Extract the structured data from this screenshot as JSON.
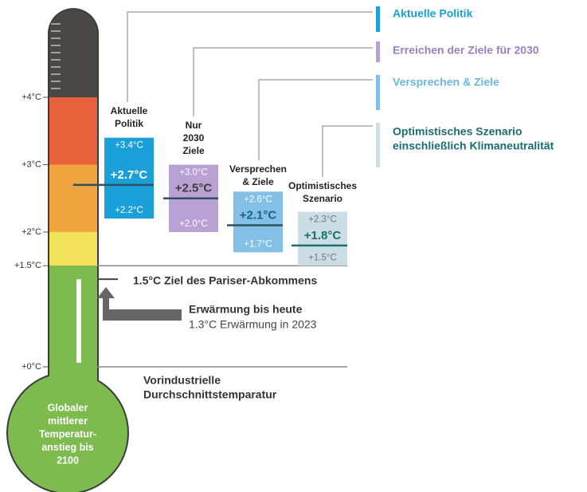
{
  "chart_data": {
    "type": "range",
    "ylim": [
      0,
      5.3
    ],
    "yticks": [
      {
        "value": 0,
        "label": "+0°C"
      },
      {
        "value": 1.5,
        "label": "+1.5°C"
      },
      {
        "value": 2,
        "label": "+2°C"
      },
      {
        "value": 3,
        "label": "+3°C"
      },
      {
        "value": 4,
        "label": "+4°C"
      }
    ],
    "zones": [
      {
        "from": 0,
        "to": 1.5,
        "color": "#7dbb4f"
      },
      {
        "from": 1.5,
        "to": 2,
        "color": "#f3e25c"
      },
      {
        "from": 2,
        "to": 3,
        "color": "#f0a43f"
      },
      {
        "from": 3,
        "to": 4,
        "color": "#e8613d"
      },
      {
        "from": 4,
        "to": 5.3,
        "color": "#4a4846"
      }
    ],
    "bulb_label": [
      "Globaler",
      "mittlerer",
      "Temperatur-",
      "anstieg bis",
      "2100"
    ],
    "series": [
      {
        "name": [
          "Aktuelle",
          "Politik"
        ],
        "legend": [
          "Aktuelle Politik"
        ],
        "color": "#1a9fd8",
        "text_color": "#1a9fd8",
        "mid_color": "#ffffff",
        "values": [
          3.4,
          2.7,
          2.2
        ],
        "value_labels": [
          "+3.4°C",
          "+2.7°C",
          "+2.2°C"
        ]
      },
      {
        "name": [
          "Nur",
          "2030",
          "Ziele"
        ],
        "legend": [
          "Erreichen der Ziele für 2030"
        ],
        "color": "#b9a2d3",
        "text_color": "#9b7fc0",
        "mid_color": "#3d3d3d",
        "values": [
          3.0,
          2.5,
          2.0
        ],
        "value_labels": [
          "+3.0°C",
          "+2.5°C",
          "+2.0°C"
        ]
      },
      {
        "name": [
          "Versprechen",
          "& Ziele"
        ],
        "legend": [
          "Versprechen & Ziele"
        ],
        "color": "#82c1e5",
        "text_color": "#6cb6e0",
        "mid_color": "#1b5f8c",
        "values": [
          2.6,
          2.1,
          1.7
        ],
        "value_labels": [
          "+2.6°C",
          "+2.1°C",
          "+1.7°C"
        ]
      },
      {
        "name": [
          "Optimistisches",
          "Szenario"
        ],
        "legend": [
          "Optimistisches Szenario",
          "einschließlich Klimaneutralität"
        ],
        "color": "#cbdee6",
        "text_color": "#1c6d70",
        "mid_color": "#1c6d70",
        "values": [
          2.3,
          1.8,
          1.5
        ],
        "value_labels": [
          "+2.3°C",
          "+1.8°C",
          "+1.5°C"
        ]
      }
    ],
    "paris_target": {
      "value": 1.5,
      "label": "1.5°C Ziel des Pariser-Abkommens"
    },
    "current_warming": {
      "value": 1.3,
      "title": "Erwärmung bis heute",
      "note": "1.3°C Erwärmung in 2023"
    },
    "baseline": {
      "value": 0,
      "label": [
        "Vorindustrielle",
        "Durchschnittstemparatur"
      ]
    }
  }
}
